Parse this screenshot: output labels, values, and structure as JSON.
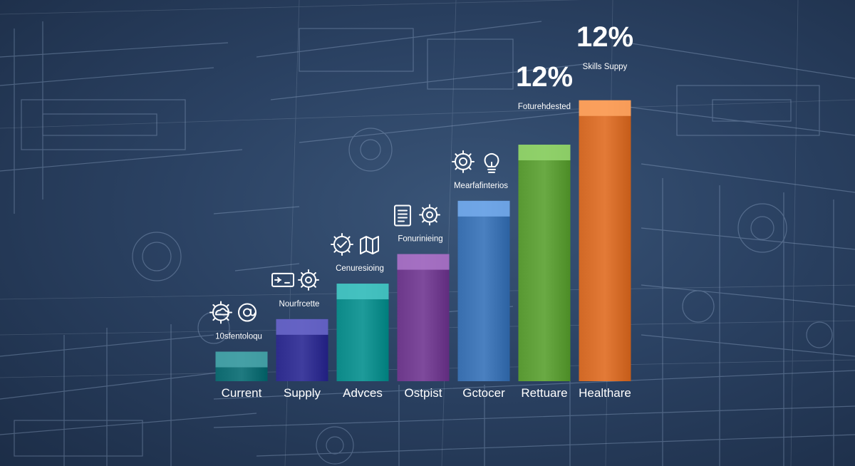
{
  "chart_data": {
    "type": "bar",
    "categories": [
      "Current",
      "Supply",
      "Advces",
      "Ostpist",
      "Gctocer",
      "Rettuare",
      "Healthare"
    ],
    "values": [
      10,
      21,
      33,
      43,
      61,
      80,
      95
    ],
    "ylim": [
      0,
      100
    ],
    "grid": false,
    "colors": [
      "#1f7a80",
      "#3f3d9e",
      "#1e9b9a",
      "#7e4a9c",
      "#4a80c0",
      "#6aaa44",
      "#e37a37"
    ],
    "annotations": [
      {
        "text": "10sfentoloqu",
        "category": "Current",
        "icons": [
          "gear-cloud-icon",
          "at-icon"
        ]
      },
      {
        "text": "Nourfrcette",
        "category": "Supply",
        "icons": [
          "card-icon",
          "gear-icon"
        ]
      },
      {
        "text": "Cenuresioing",
        "category": "Advces",
        "icons": [
          "gear-check-icon",
          "map-icon"
        ]
      },
      {
        "text": "Fonurinieing",
        "category": "Ostpist",
        "icons": [
          "document-icon",
          "gear-icon"
        ]
      },
      {
        "text": "Mearfafinterios",
        "category": "Gctocer",
        "icons": [
          "gear-face-icon",
          "lightbulb-icon"
        ]
      },
      {
        "text": "Foturehdested",
        "category": "Rettuare",
        "big": "12%"
      },
      {
        "text": "Skills Suppy",
        "category": "Healthare",
        "big": "12%"
      }
    ]
  }
}
